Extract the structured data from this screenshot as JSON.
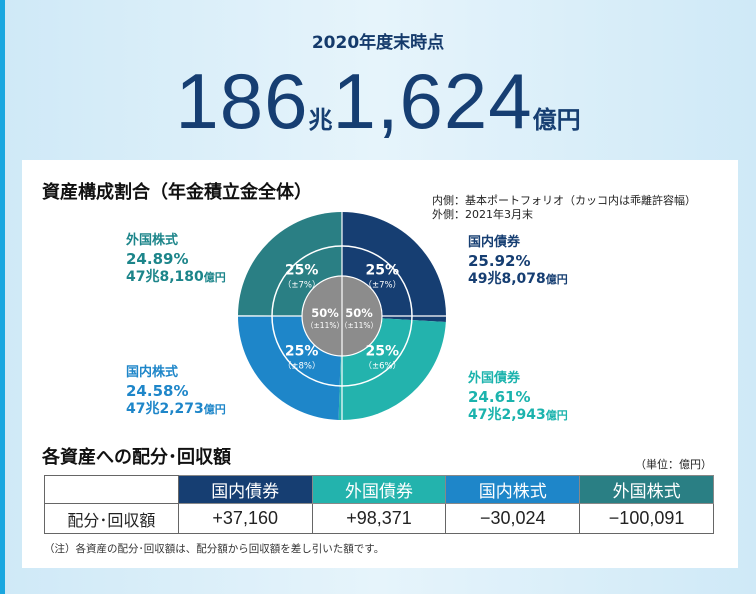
{
  "header": {
    "as_of": "2020年度末時点",
    "total_num1": "186",
    "total_unit1": "兆",
    "total_num2": "1,624",
    "total_unit2": "億円"
  },
  "composition": {
    "title": "資産構成割合（年金積立金全体）",
    "legend_inner": "内側：基本ポートフォリオ（カッコ内は乖離許容幅）",
    "legend_outer": "外側：2021年3月末"
  },
  "chart_data": {
    "type": "pie",
    "title": "資産構成割合（年金積立金全体）",
    "outer_ring": {
      "label": "外側：2021年3月末",
      "slices": [
        {
          "name": "国内債券",
          "value": 25.92,
          "pct_label": "25.92%",
          "amount": "49兆8,078",
          "amount_unit": "億円",
          "color": "#163e72"
        },
        {
          "name": "外国債券",
          "value": 24.61,
          "pct_label": "24.61%",
          "amount": "47兆2,943",
          "amount_unit": "億円",
          "color": "#23b3ad"
        },
        {
          "name": "国内株式",
          "value": 24.58,
          "pct_label": "24.58%",
          "amount": "47兆2,273",
          "amount_unit": "億円",
          "color": "#1e86c9"
        },
        {
          "name": "外国株式",
          "value": 24.89,
          "pct_label": "24.89%",
          "amount": "47兆8,180",
          "amount_unit": "億円",
          "color": "#2a7f84"
        }
      ]
    },
    "inner_ring": {
      "label": "内側：基本ポートフォリオ（カッコ内は乖離許容幅）",
      "slices": [
        {
          "name": "国内債券",
          "value": 25,
          "label": "25%",
          "band": "（±7%）"
        },
        {
          "name": "外国債券",
          "value": 25,
          "label": "25%",
          "band": "（±6%）"
        },
        {
          "name": "国内株式",
          "value": 25,
          "label": "25%",
          "band": "（±8%）"
        },
        {
          "name": "外国株式",
          "value": 25,
          "label": "25%",
          "band": "（±7%）"
        }
      ],
      "center": [
        {
          "label": "50%",
          "band": "（±11%）",
          "group": "stocks"
        },
        {
          "label": "50%",
          "band": "（±11%）",
          "group": "bonds"
        }
      ]
    }
  },
  "flows": {
    "title": "各資産への配分･回収額",
    "unit": "（単位：億円）",
    "row_label": "配分･回収額",
    "columns": [
      "国内債券",
      "外国債券",
      "国内株式",
      "外国株式"
    ],
    "values": [
      "+37,160",
      "+98,371",
      "−30,024",
      "−100,091"
    ],
    "footnote": "（注）各資産の配分･回収額は、配分額から回収額を差し引いた額です。"
  }
}
